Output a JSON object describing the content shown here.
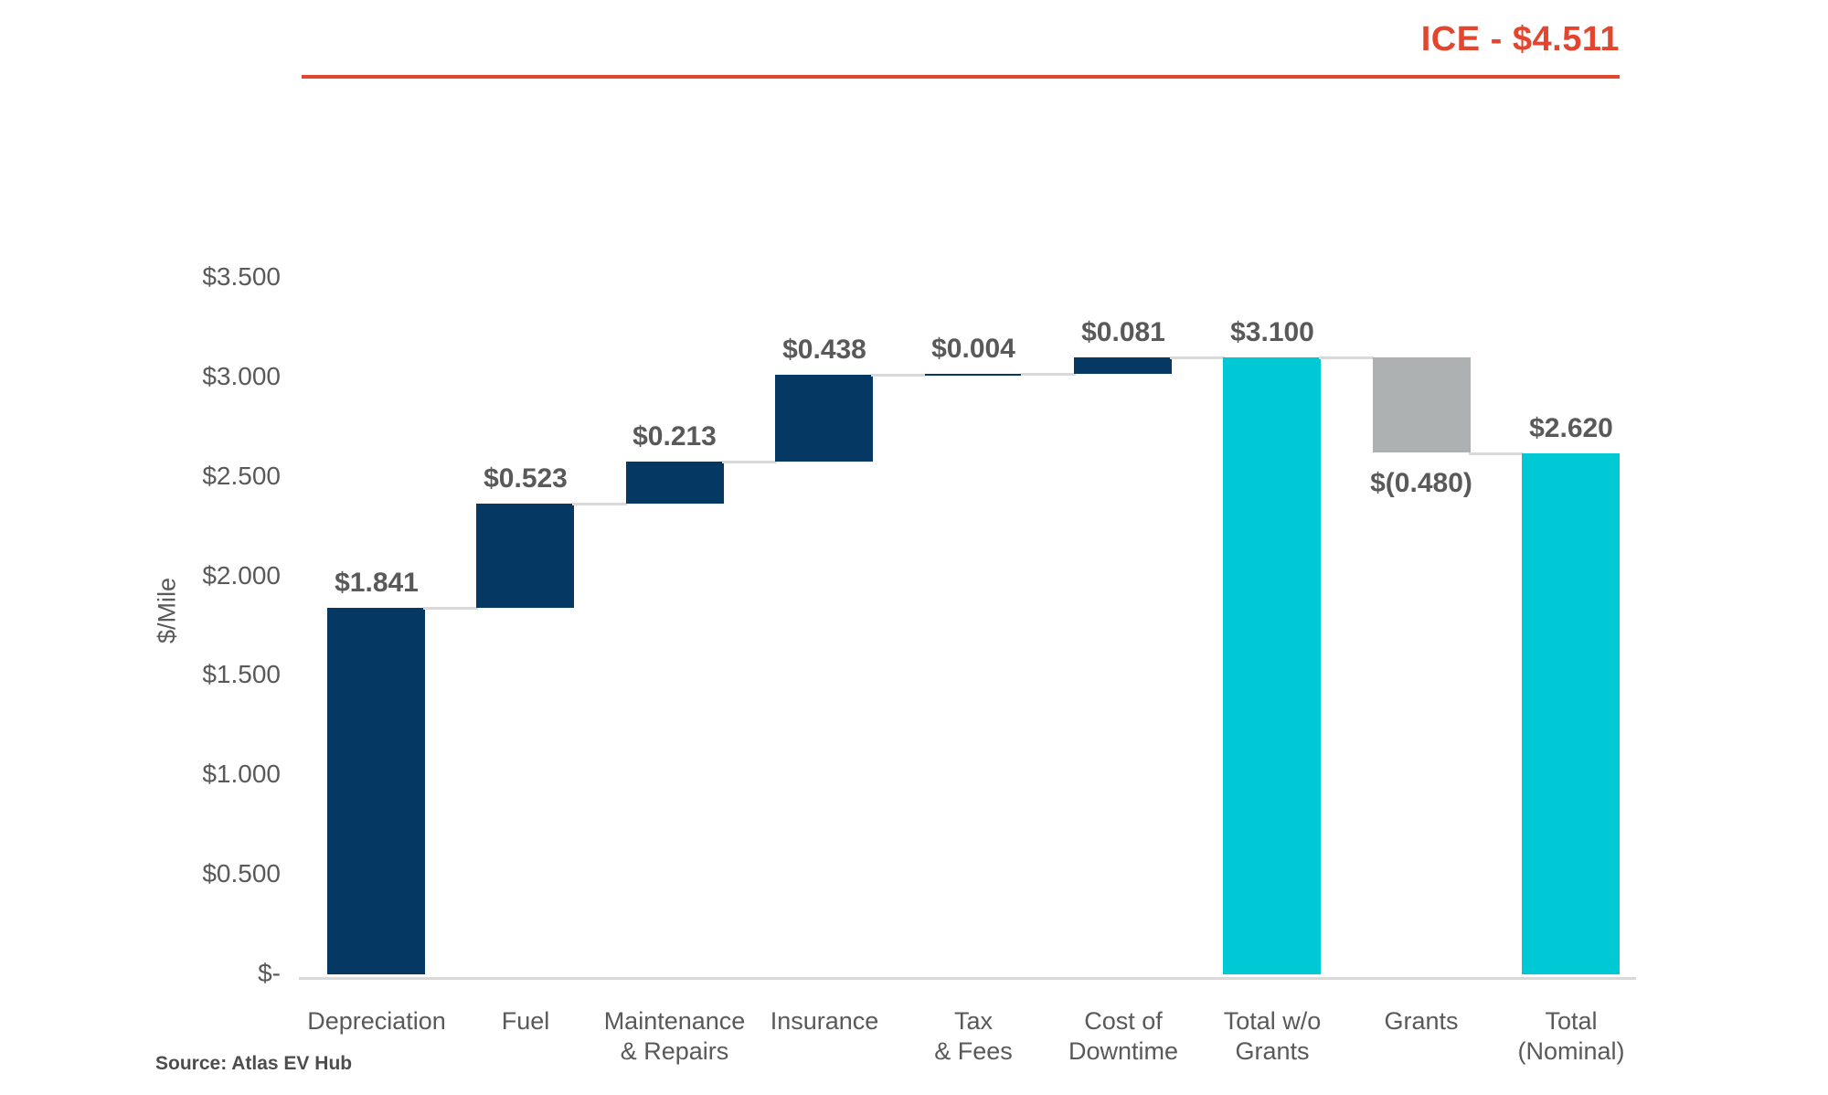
{
  "source": {
    "label": "Source: Atlas EV Hub"
  },
  "chart_data": {
    "type": "bar",
    "subtype": "waterfall",
    "title": "",
    "xlabel": "",
    "ylabel": "$/Mile",
    "ylim": [
      0,
      3.5
    ],
    "grid": false,
    "legend": false,
    "text_color": "#595959",
    "connector_color": "#d9d9d9",
    "yticks": [
      {
        "value": 0.0,
        "label": "$-"
      },
      {
        "value": 0.5,
        "label": "$0.500"
      },
      {
        "value": 1.0,
        "label": "$1.000"
      },
      {
        "value": 1.5,
        "label": "$1.500"
      },
      {
        "value": 2.0,
        "label": "$2.000"
      },
      {
        "value": 2.5,
        "label": "$2.500"
      },
      {
        "value": 3.0,
        "label": "$3.000"
      },
      {
        "value": 3.5,
        "label": "$3.500"
      }
    ],
    "reference_line": {
      "label": "ICE - $4.511",
      "value": 4.511,
      "color": "#e2462e"
    },
    "bars": [
      {
        "category": [
          "Depreciation"
        ],
        "value": 1.841,
        "display": "$1.841",
        "kind": "delta",
        "color": "#053863",
        "label_position": "above"
      },
      {
        "category": [
          "Fuel"
        ],
        "value": 0.523,
        "display": "$0.523",
        "kind": "delta",
        "color": "#053863",
        "label_position": "above"
      },
      {
        "category": [
          "Maintenance",
          "& Repairs"
        ],
        "value": 0.213,
        "display": "$0.213",
        "kind": "delta",
        "color": "#053863",
        "label_position": "above"
      },
      {
        "category": [
          "Insurance"
        ],
        "value": 0.438,
        "display": "$0.438",
        "kind": "delta",
        "color": "#053863",
        "label_position": "above"
      },
      {
        "category": [
          "Tax",
          "& Fees"
        ],
        "value": 0.004,
        "display": "$0.004",
        "kind": "delta",
        "color": "#053863",
        "label_position": "above"
      },
      {
        "category": [
          "Cost of",
          "Downtime"
        ],
        "value": 0.081,
        "display": "$0.081",
        "kind": "delta",
        "color": "#053863",
        "label_position": "above"
      },
      {
        "category": [
          "Total w/o",
          "Grants"
        ],
        "value": 3.1,
        "display": "$3.100",
        "kind": "total",
        "color": "#00c9d6",
        "label_position": "above"
      },
      {
        "category": [
          "Grants"
        ],
        "value": -0.48,
        "display": "$(0.480)",
        "kind": "delta",
        "color": "#aeb1b1",
        "label_position": "below"
      },
      {
        "category": [
          "Total",
          "(Nominal)"
        ],
        "value": 2.62,
        "display": "$2.620",
        "kind": "total",
        "color": "#00c9d6",
        "label_position": "above"
      }
    ]
  }
}
